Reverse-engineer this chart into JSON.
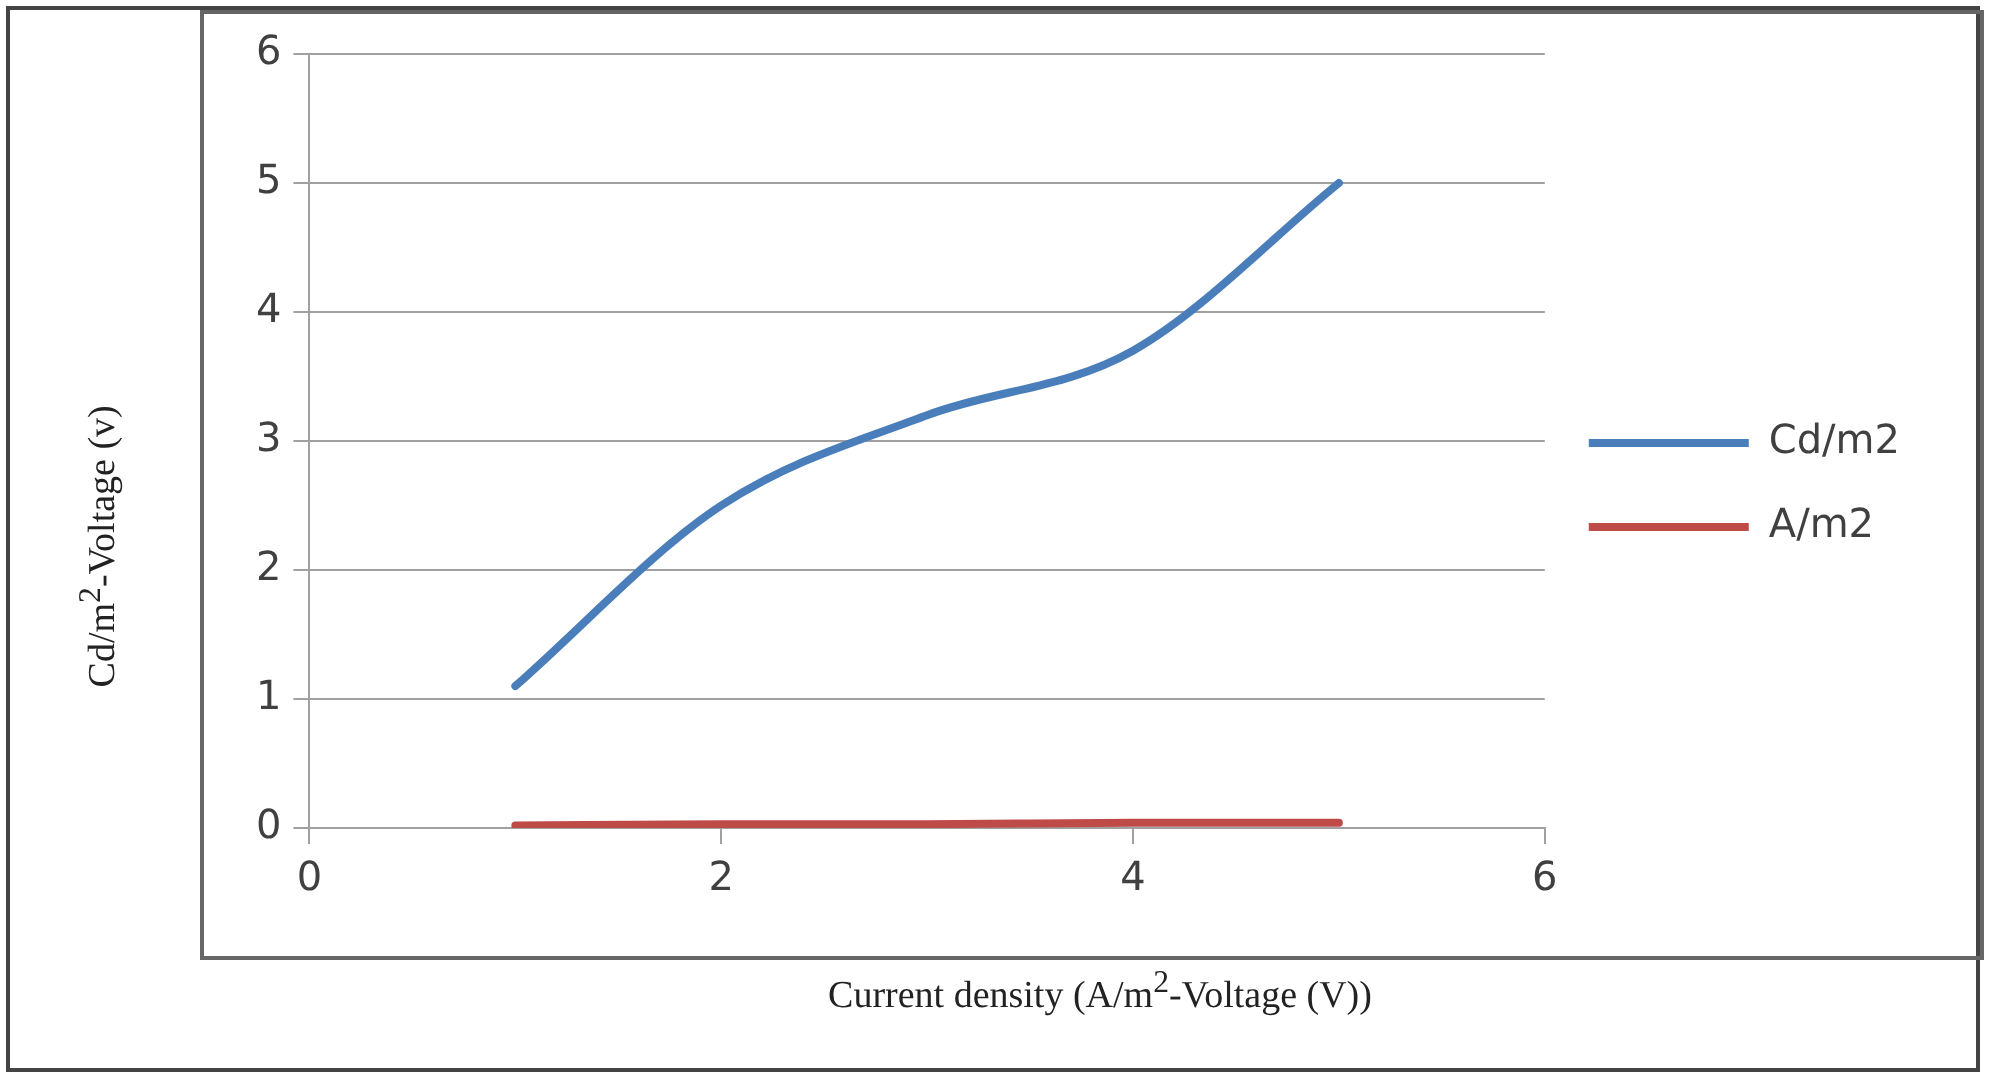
{
  "chart_data": {
    "type": "line",
    "xlabel": "Current density (A/m$^{2}$-Voltage (V))",
    "ylabel": "Cd/m$^{2}$-Voltage (v)",
    "x": [
      1,
      2,
      3,
      4,
      5
    ],
    "series": [
      {
        "name": "Cd/m2",
        "color": "#4a7ebb",
        "values": [
          1.1,
          2.5,
          3.2,
          3.7,
          5
        ]
      },
      {
        "name": "A/m2",
        "color": "#be4b48",
        "values": [
          0.02,
          0.03,
          0.03,
          0.04,
          0.04
        ]
      }
    ],
    "xlim": [
      0,
      6
    ],
    "xticks": [
      0,
      2,
      4,
      6
    ],
    "ylim": [
      0,
      6
    ],
    "yticks": [
      0,
      1,
      2,
      3,
      4,
      5,
      6
    ],
    "grid": "y",
    "legend": "right",
    "marker": "none",
    "line_style": "solid"
  }
}
